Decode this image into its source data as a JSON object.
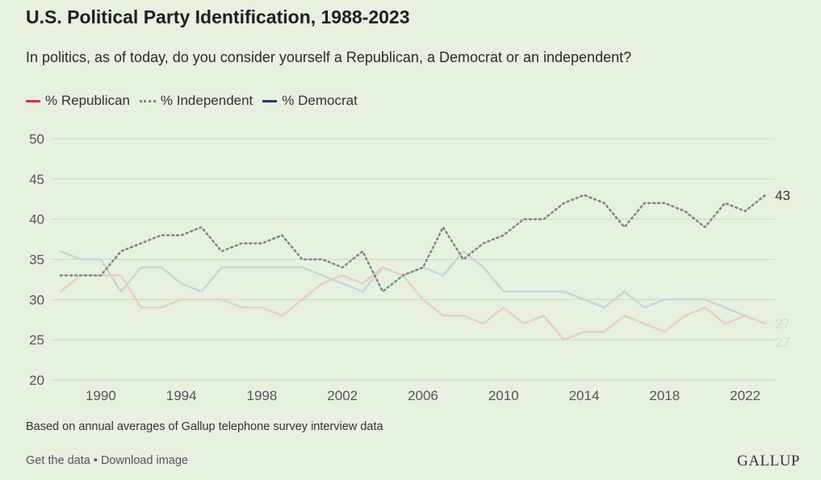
{
  "header": {
    "title": "U.S. Political Party Identification, 1988-2023",
    "subtitle": "In politics, as of today, do you consider yourself a Republican, a Democrat or an independent?"
  },
  "legend": {
    "republican": "% Republican",
    "independent": "% Independent",
    "democrat": "% Democrat"
  },
  "colors": {
    "background": "#e6f1e0",
    "republican": "#e0323c",
    "independent": "#6e8f7c",
    "democrat": "#1f3c72",
    "republican_faded": "#eccdc6",
    "democrat_faded": "#c7d8d6"
  },
  "chart_data": {
    "type": "line",
    "title": "U.S. Political Party Identification, 1988-2023",
    "xlabel": "",
    "ylabel": "",
    "ylim": [
      20,
      50
    ],
    "yticks": [
      20,
      25,
      30,
      35,
      40,
      45,
      50
    ],
    "xticks": [
      1990,
      1994,
      1998,
      2002,
      2006,
      2010,
      2014,
      2018,
      2022
    ],
    "grid": true,
    "x": [
      1988,
      1989,
      1990,
      1991,
      1992,
      1993,
      1994,
      1995,
      1996,
      1997,
      1998,
      1999,
      2000,
      2001,
      2002,
      2003,
      2004,
      2005,
      2006,
      2007,
      2008,
      2009,
      2010,
      2011,
      2012,
      2013,
      2014,
      2015,
      2016,
      2017,
      2018,
      2019,
      2020,
      2021,
      2022,
      2023
    ],
    "series": [
      {
        "name": "% Republican",
        "key": "republican",
        "values": [
          31,
          33,
          33,
          33,
          29,
          29,
          30,
          30,
          30,
          29,
          29,
          28,
          30,
          32,
          33,
          32,
          34,
          33,
          30,
          28,
          28,
          27,
          29,
          27,
          28,
          25,
          26,
          26,
          28,
          27,
          26,
          28,
          29,
          27,
          28,
          27
        ]
      },
      {
        "name": "% Independent",
        "key": "independent",
        "values": [
          33,
          33,
          33,
          36,
          37,
          38,
          38,
          39,
          36,
          37,
          37,
          38,
          35,
          35,
          34,
          36,
          31,
          33,
          34,
          39,
          35,
          37,
          38,
          40,
          40,
          42,
          43,
          42,
          39,
          42,
          42,
          41,
          39,
          42,
          41,
          43
        ]
      },
      {
        "name": "% Democrat",
        "key": "democrat",
        "values": [
          36,
          35,
          35,
          31,
          34,
          34,
          32,
          31,
          34,
          34,
          34,
          34,
          34,
          33,
          32,
          31,
          34,
          33,
          34,
          33,
          36,
          34,
          31,
          31,
          31,
          31,
          30,
          29,
          31,
          29,
          30,
          30,
          30,
          29,
          28,
          27
        ]
      }
    ],
    "end_labels": [
      {
        "series": "independent",
        "text": "43"
      },
      {
        "series": "democrat",
        "text": "27"
      },
      {
        "series": "republican",
        "text": "27"
      }
    ]
  },
  "footer": {
    "note": "Based on annual averages of Gallup telephone survey interview data",
    "get_data": "Get the data",
    "separator": " • ",
    "download": "Download image",
    "logo": "GALLUP"
  }
}
